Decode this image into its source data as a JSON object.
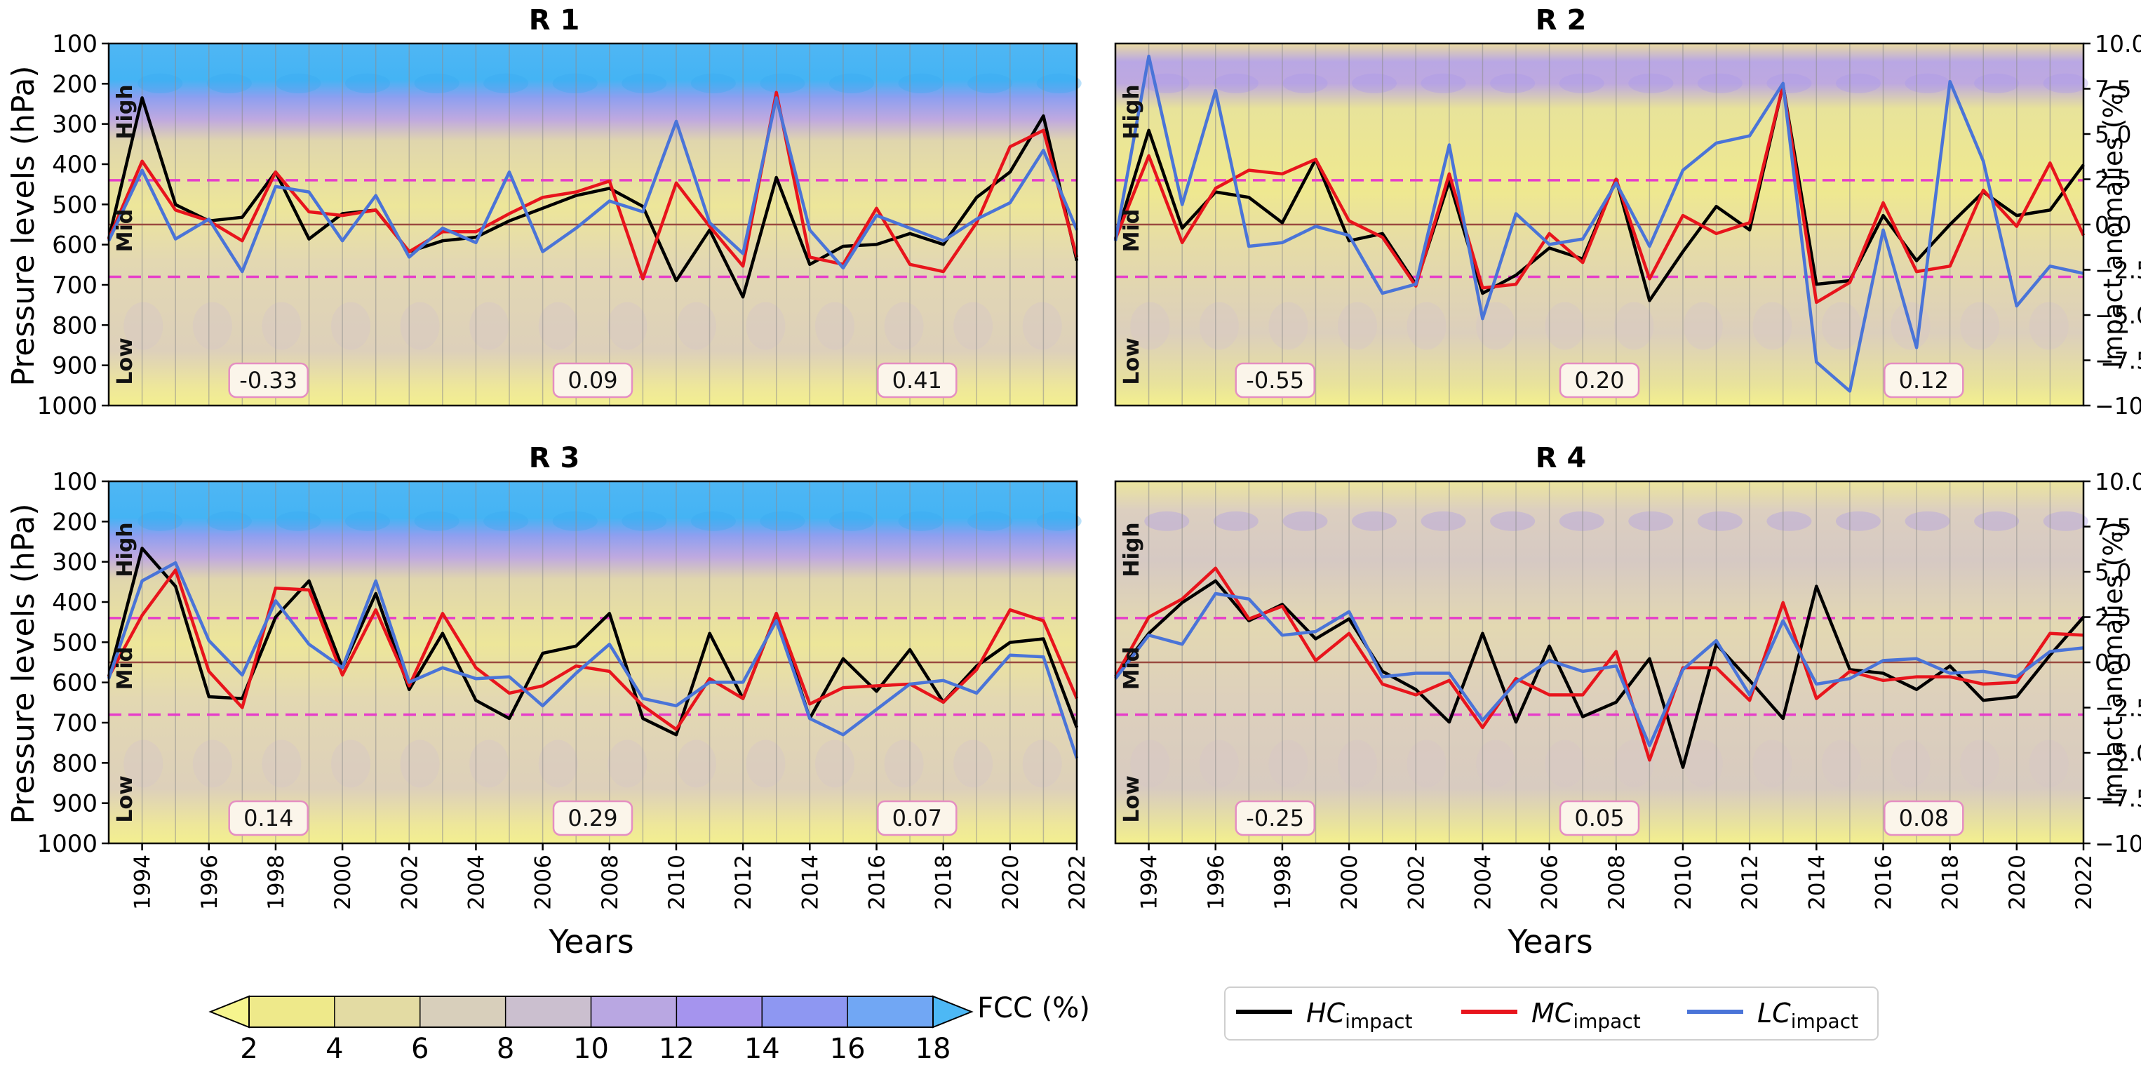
{
  "chart_data": [
    {
      "type": "line",
      "panel": "R 1",
      "title": "R 1",
      "x": [
        1993,
        1994,
        1995,
        1996,
        1997,
        1998,
        1999,
        2000,
        2001,
        2002,
        2003,
        2004,
        2005,
        2006,
        2007,
        2008,
        2009,
        2010,
        2011,
        2012,
        2013,
        2014,
        2015,
        2016,
        2017,
        2018,
        2019,
        2020,
        2021,
        2022
      ],
      "series": [
        {
          "name": "HC_impact",
          "color": "#000000",
          "values": [
            -0.8,
            7.0,
            1.1,
            0.2,
            0.4,
            2.9,
            -0.8,
            0.6,
            0.8,
            -1.5,
            -0.9,
            -0.7,
            0.2,
            0.9,
            1.6,
            2.0,
            1.0,
            -3.1,
            -0.3,
            -4.0,
            2.6,
            -2.2,
            -1.2,
            -1.1,
            -0.5,
            -1.1,
            1.5,
            2.9,
            6.0,
            -2.0
          ]
        },
        {
          "name": "MC_impact",
          "color": "#e8141c",
          "values": [
            -0.8,
            3.5,
            0.8,
            0.2,
            -0.9,
            2.9,
            0.7,
            0.5,
            0.8,
            -1.5,
            -0.4,
            -0.4,
            0.6,
            1.5,
            1.8,
            2.4,
            -3.0,
            2.3,
            -0.1,
            -2.3,
            7.3,
            -1.8,
            -2.2,
            0.9,
            -2.2,
            -2.6,
            0.1,
            4.3,
            5.2,
            -1.8
          ]
        },
        {
          "name": "LC_impact",
          "color": "#4a74d8",
          "values": [
            -0.9,
            3.0,
            -0.8,
            0.3,
            -2.6,
            2.1,
            1.8,
            -0.9,
            1.6,
            -1.8,
            -0.2,
            -1.0,
            2.9,
            -1.5,
            -0.2,
            1.3,
            0.7,
            5.7,
            0.1,
            -1.6,
            7.0,
            -0.3,
            -2.4,
            0.5,
            -0.2,
            -0.9,
            0.3,
            1.2,
            4.1,
            -0.3
          ]
        }
      ],
      "correlations": [
        "-0.33",
        "0.09",
        "0.41"
      ],
      "contour_band": "strong"
    },
    {
      "type": "line",
      "panel": "R 2",
      "title": "R 2",
      "x": [
        1993,
        1994,
        1995,
        1996,
        1997,
        1998,
        1999,
        2000,
        2001,
        2002,
        2003,
        2004,
        2005,
        2006,
        2007,
        2008,
        2009,
        2010,
        2011,
        2012,
        2013,
        2014,
        2015,
        2016,
        2017,
        2018,
        2019,
        2020,
        2021,
        2022
      ],
      "series": [
        {
          "name": "HC_impact",
          "color": "#000000",
          "values": [
            -0.8,
            5.2,
            -0.2,
            1.8,
            1.5,
            0.1,
            3.6,
            -0.9,
            -0.5,
            -3.3,
            2.4,
            -3.8,
            -2.8,
            -1.3,
            -1.9,
            2.5,
            -4.2,
            -1.5,
            1.0,
            -0.3,
            7.7,
            -3.3,
            -3.1,
            0.5,
            -2.0,
            0.0,
            1.8,
            0.5,
            0.8,
            3.3
          ]
        },
        {
          "name": "MC_impact",
          "color": "#e8141c",
          "values": [
            -0.8,
            3.8,
            -1.0,
            2.0,
            3.0,
            2.8,
            3.6,
            0.2,
            -0.7,
            -3.4,
            2.8,
            -3.5,
            -3.3,
            -0.5,
            -2.1,
            2.5,
            -3.0,
            0.5,
            -0.5,
            0.1,
            7.7,
            -4.3,
            -3.2,
            1.2,
            -2.6,
            -2.3,
            1.9,
            -0.1,
            3.4,
            -0.6
          ]
        },
        {
          "name": "LC_impact",
          "color": "#4a74d8",
          "values": [
            -0.9,
            9.3,
            1.1,
            7.4,
            -1.2,
            -1.0,
            -0.1,
            -0.6,
            -3.8,
            -3.3,
            4.4,
            -5.2,
            0.6,
            -1.1,
            -0.8,
            2.3,
            -1.2,
            3.0,
            4.5,
            4.9,
            7.8,
            -7.6,
            -9.2,
            -0.3,
            -6.8,
            7.9,
            3.5,
            -4.5,
            -2.3,
            -2.7
          ]
        }
      ],
      "correlations": [
        "-0.55",
        "0.20",
        "0.12"
      ],
      "contour_band": "weak"
    },
    {
      "type": "line",
      "panel": "R 3",
      "title": "R 3",
      "x": [
        1993,
        1994,
        1995,
        1996,
        1997,
        1998,
        1999,
        2000,
        2001,
        2002,
        2003,
        2004,
        2005,
        2006,
        2007,
        2008,
        2009,
        2010,
        2011,
        2012,
        2013,
        2014,
        2015,
        2016,
        2017,
        2018,
        2019,
        2020,
        2021,
        2022
      ],
      "series": [
        {
          "name": "HC_impact",
          "color": "#000000",
          "values": [
            -0.8,
            6.3,
            4.2,
            -1.9,
            -2.0,
            2.5,
            4.5,
            -0.3,
            3.8,
            -1.5,
            1.6,
            -2.1,
            -3.1,
            0.5,
            0.9,
            2.7,
            -3.1,
            -4.0,
            1.6,
            -2.0,
            2.7,
            -3.1,
            0.2,
            -1.6,
            0.7,
            -2.2,
            -0.2,
            1.1,
            1.3,
            -3.6
          ]
        },
        {
          "name": "MC_impact",
          "color": "#e8141c",
          "values": [
            -0.8,
            2.6,
            5.1,
            -0.5,
            -2.5,
            4.1,
            4.0,
            -0.7,
            2.9,
            -1.3,
            2.7,
            -0.3,
            -1.7,
            -1.3,
            -0.2,
            -0.5,
            -2.4,
            -3.7,
            -0.9,
            -2.0,
            2.7,
            -2.3,
            -1.4,
            -1.3,
            -1.2,
            -2.2,
            -0.4,
            2.9,
            2.3,
            -2.0
          ]
        },
        {
          "name": "LC_impact",
          "color": "#4a74d8",
          "values": [
            -0.9,
            4.5,
            5.5,
            1.2,
            -0.7,
            3.4,
            1.0,
            -0.3,
            4.5,
            -1.1,
            -0.3,
            -0.9,
            -0.8,
            -2.4,
            -0.6,
            1.0,
            -2.0,
            -2.4,
            -1.1,
            -1.1,
            2.3,
            -3.1,
            -4.0,
            -2.6,
            -1.2,
            -1.0,
            -1.7,
            0.4,
            0.3,
            -5.3
          ]
        }
      ],
      "correlations": [
        "0.14",
        "0.29",
        "0.07"
      ],
      "contour_band": "strong"
    },
    {
      "type": "line",
      "panel": "R 4",
      "title": "R 4",
      "x": [
        1993,
        1994,
        1995,
        1996,
        1997,
        1998,
        1999,
        2000,
        2001,
        2002,
        2003,
        2004,
        2005,
        2006,
        2007,
        2008,
        2009,
        2010,
        2011,
        2012,
        2013,
        2014,
        2015,
        2016,
        2017,
        2018,
        2019,
        2020,
        2021,
        2022
      ],
      "series": [
        {
          "name": "HC_impact",
          "color": "#000000",
          "values": [
            -0.8,
            1.6,
            3.3,
            4.5,
            2.3,
            3.2,
            1.3,
            2.4,
            -0.5,
            -1.5,
            -3.3,
            1.6,
            -3.3,
            0.9,
            -3.0,
            -2.2,
            0.2,
            -5.8,
            1.0,
            -1.0,
            -3.1,
            4.2,
            -0.4,
            -0.6,
            -1.5,
            -0.2,
            -2.1,
            -1.9,
            0.4,
            2.5
          ]
        },
        {
          "name": "MC_impact",
          "color": "#e8141c",
          "values": [
            -0.8,
            2.5,
            3.5,
            5.2,
            2.4,
            3.1,
            0.1,
            1.6,
            -1.2,
            -1.8,
            -1.0,
            -3.6,
            -0.9,
            -1.8,
            -1.8,
            0.6,
            -5.4,
            -0.3,
            -0.3,
            -2.1,
            3.3,
            -2.0,
            -0.5,
            -1.0,
            -0.8,
            -0.8,
            -1.2,
            -1.1,
            1.6,
            1.5
          ]
        },
        {
          "name": "LC_impact",
          "color": "#4a74d8",
          "values": [
            -0.9,
            1.5,
            1.0,
            3.8,
            3.5,
            1.5,
            1.7,
            2.8,
            -0.8,
            -0.6,
            -0.6,
            -3.2,
            -1.1,
            0.1,
            -0.5,
            -0.2,
            -4.6,
            -0.4,
            1.2,
            -1.8,
            2.3,
            -1.2,
            -0.9,
            0.1,
            0.2,
            -0.6,
            -0.5,
            -0.8,
            0.6,
            0.8
          ]
        }
      ],
      "correlations": [
        "-0.25",
        "0.05",
        "0.08"
      ],
      "contour_band": "weak"
    }
  ],
  "labels": {
    "y_left": "Pressure levels (hPa)",
    "y_right": "Impact anomalies (%)",
    "x_label": "Years",
    "high": "High",
    "mid": "Mid",
    "low": "Low",
    "colorbar_label": "FCC (%)"
  },
  "axes": {
    "pressure_ticks": [
      "100",
      "200",
      "300",
      "400",
      "500",
      "600",
      "700",
      "800",
      "900",
      "1000"
    ],
    "anomaly_ticks": [
      "10.0",
      "7.5",
      "5.0",
      "2.5",
      "0.0",
      "−2.5",
      "−5.0",
      "−7.5",
      "−10.0"
    ],
    "anomaly_range": [
      -10,
      10
    ],
    "pressure_range": [
      100,
      1000
    ],
    "x_range": [
      1993,
      2022
    ],
    "year_ticks": [
      "1994",
      "1996",
      "1998",
      "2000",
      "2002",
      "2004",
      "2006",
      "2008",
      "2010",
      "2012",
      "2014",
      "2016",
      "2018",
      "2020",
      "2022"
    ]
  },
  "colorbar": {
    "ticks": [
      "2",
      "4",
      "6",
      "8",
      "10",
      "12",
      "14",
      "16",
      "18"
    ],
    "colors": [
      "#f6f58e",
      "#eee98a",
      "#e3dba3",
      "#d8cfbb",
      "#cbbfcf",
      "#b9a7e2",
      "#a594ee",
      "#8e97f2",
      "#71a7f4",
      "#4db8f5"
    ]
  },
  "legend": [
    {
      "label": "HC",
      "sub": "impact",
      "color": "#000000"
    },
    {
      "label": "MC",
      "sub": "impact",
      "color": "#e8141c"
    },
    {
      "label": "LC",
      "sub": "impact",
      "color": "#4a74d8"
    }
  ]
}
